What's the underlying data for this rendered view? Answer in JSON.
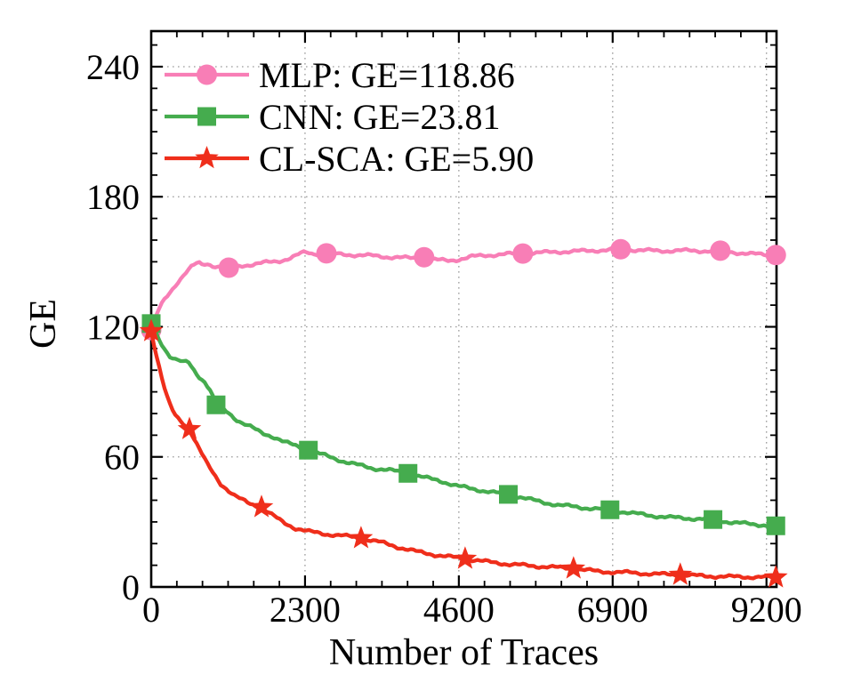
{
  "figure": {
    "background": "#ffffff",
    "frame_color": "#000000",
    "grid_color": "#9b9b9b",
    "text_color": "#000000"
  },
  "chart_data": {
    "type": "line",
    "title": "",
    "xlabel": "Number of Traces",
    "ylabel": "GE",
    "xlim": [
      0,
      9350
    ],
    "ylim": [
      0,
      256.4
    ],
    "xticks": [
      0,
      2300,
      4600,
      6900,
      9200
    ],
    "yticks": [
      0,
      60,
      120,
      180,
      240
    ],
    "x_minor_divisions": 6,
    "y_minor_step": 10,
    "grid": "dotted lines at major ticks",
    "legend_position": "top-left inside plot",
    "legend_entries": [
      "MLP: GE=118.86",
      "CNN: GE=23.81",
      "CL-SCA: GE=5.90"
    ],
    "series": [
      {
        "name": "MLP: GE=118.86",
        "color": "#f87eb6",
        "marker": "circle",
        "points": [
          [
            0,
            118.5
          ],
          [
            50,
            123
          ],
          [
            100,
            127
          ],
          [
            150,
            130
          ],
          [
            200,
            132.5
          ],
          [
            260,
            135
          ],
          [
            320,
            137.5
          ],
          [
            390,
            140.5
          ],
          [
            460,
            143
          ],
          [
            530,
            145.5
          ],
          [
            600,
            147.5
          ],
          [
            700,
            149.6
          ],
          [
            760,
            148.6
          ],
          [
            830,
            149.2
          ],
          [
            900,
            148.4
          ],
          [
            1000,
            147.8
          ],
          [
            1160,
            147.3
          ],
          [
            1280,
            147.9
          ],
          [
            1400,
            148.4
          ],
          [
            1550,
            148.9
          ],
          [
            1700,
            149.6
          ],
          [
            1850,
            150.1
          ],
          [
            1950,
            150.6
          ],
          [
            2100,
            151.9
          ],
          [
            2200,
            153.3
          ],
          [
            2300,
            154.5
          ],
          [
            2420,
            153.7
          ],
          [
            2620,
            153.9
          ],
          [
            2800,
            153.5
          ],
          [
            3000,
            153.2
          ],
          [
            3300,
            152.8
          ],
          [
            3600,
            152.1
          ],
          [
            3900,
            151.7
          ],
          [
            4080,
            152.1
          ],
          [
            4250,
            150.9
          ],
          [
            4450,
            150.5
          ],
          [
            4600,
            151.1
          ],
          [
            4800,
            152.4
          ],
          [
            5000,
            152.9
          ],
          [
            5250,
            153.5
          ],
          [
            5557,
            153.8
          ],
          [
            5800,
            154.2
          ],
          [
            6100,
            154.6
          ],
          [
            6400,
            154.9
          ],
          [
            6700,
            155.3
          ],
          [
            7020,
            155.8
          ],
          [
            7300,
            155.4
          ],
          [
            7600,
            155.0
          ],
          [
            7900,
            155.2
          ],
          [
            8200,
            155.0
          ],
          [
            8510,
            155.1
          ],
          [
            8700,
            154.4
          ],
          [
            8900,
            153.8
          ],
          [
            9100,
            153.4
          ],
          [
            9340,
            153.1
          ]
        ],
        "marker_x": [
          0,
          1160,
          2620,
          4080,
          5557,
          7020,
          8510,
          9340
        ]
      },
      {
        "name": "CNN: GE=23.81",
        "color": "#45ac4e",
        "marker": "square",
        "points": [
          [
            0,
            121.5
          ],
          [
            70,
            117
          ],
          [
            140,
            113
          ],
          [
            210,
            109.5
          ],
          [
            280,
            106.5
          ],
          [
            350,
            105
          ],
          [
            420,
            104.3
          ],
          [
            490,
            103.4
          ],
          [
            550,
            104.0
          ],
          [
            620,
            100.8
          ],
          [
            700,
            97.6
          ],
          [
            800,
            94.6
          ],
          [
            880,
            90.8
          ],
          [
            970,
            84.0
          ],
          [
            1060,
            82.3
          ],
          [
            1160,
            80.3
          ],
          [
            1260,
            77.6
          ],
          [
            1360,
            75.6
          ],
          [
            1500,
            73.6
          ],
          [
            1660,
            71.0
          ],
          [
            1820,
            69.4
          ],
          [
            1980,
            66.9
          ],
          [
            2150,
            65.3
          ],
          [
            2350,
            63.1
          ],
          [
            2520,
            61.4
          ],
          [
            2700,
            59.7
          ],
          [
            2900,
            57.7
          ],
          [
            3100,
            56.2
          ],
          [
            3320,
            54.7
          ],
          [
            3560,
            53.9
          ],
          [
            3840,
            52.4
          ],
          [
            4100,
            50.4
          ],
          [
            4350,
            48.7
          ],
          [
            4600,
            46.4
          ],
          [
            4850,
            45.0
          ],
          [
            5100,
            43.7
          ],
          [
            5340,
            42.7
          ],
          [
            5600,
            40.9
          ],
          [
            5850,
            39.0
          ],
          [
            6100,
            37.8
          ],
          [
            6400,
            36.7
          ],
          [
            6860,
            35.6
          ],
          [
            7150,
            34.2
          ],
          [
            7450,
            33.0
          ],
          [
            7750,
            32.1
          ],
          [
            8050,
            31.6
          ],
          [
            8400,
            31.1
          ],
          [
            8700,
            29.7
          ],
          [
            9000,
            28.9
          ],
          [
            9340,
            28.2
          ]
        ],
        "marker_x": [
          0,
          970,
          2350,
          3840,
          5340,
          6860,
          8400,
          9340
        ]
      },
      {
        "name": "CL-SCA: GE=5.90",
        "color": "#ef2e1b",
        "marker": "star",
        "points": [
          [
            0,
            118
          ],
          [
            50,
            111
          ],
          [
            110,
            103
          ],
          [
            170,
            95
          ],
          [
            230,
            88.5
          ],
          [
            290,
            83
          ],
          [
            350,
            79.5
          ],
          [
            420,
            77
          ],
          [
            490,
            75.2
          ],
          [
            572,
            72.8
          ],
          [
            650,
            68
          ],
          [
            740,
            62.5
          ],
          [
            840,
            56.5
          ],
          [
            940,
            51.8
          ],
          [
            1040,
            47.6
          ],
          [
            1130,
            45.2
          ],
          [
            1240,
            42.2
          ],
          [
            1360,
            40.1
          ],
          [
            1490,
            38.2
          ],
          [
            1649,
            36.8
          ],
          [
            1800,
            33.4
          ],
          [
            1980,
            29.6
          ],
          [
            2150,
            27.2
          ],
          [
            2350,
            25.6
          ],
          [
            2600,
            24.4
          ],
          [
            2850,
            23.7
          ],
          [
            3138,
            22.5
          ],
          [
            3420,
            20.7
          ],
          [
            3700,
            18.3
          ],
          [
            4000,
            16.1
          ],
          [
            4330,
            14.4
          ],
          [
            4694,
            13.0
          ],
          [
            5000,
            11.7
          ],
          [
            5350,
            10.5
          ],
          [
            5750,
            9.6
          ],
          [
            6315,
            8.5
          ],
          [
            6700,
            7.1
          ],
          [
            7100,
            6.7
          ],
          [
            7500,
            6.0
          ],
          [
            7911,
            5.6
          ],
          [
            8300,
            5.0
          ],
          [
            8700,
            4.7
          ],
          [
            9000,
            4.6
          ],
          [
            9340,
            4.4
          ]
        ],
        "marker_x": [
          0,
          572,
          1649,
          3138,
          4694,
          6315,
          7911,
          9340
        ]
      }
    ]
  }
}
